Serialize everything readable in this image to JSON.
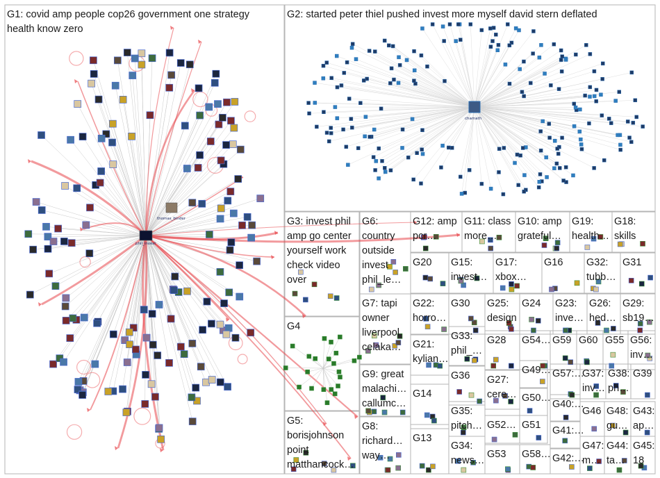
{
  "colors": {
    "background": "#ffffff",
    "panel_border": "#b5b5b5",
    "edge_light": "#c9c9c9",
    "edge_strong": "#e8474c",
    "node_blue": "#2d6fb3",
    "node_green": "#3a8f3a",
    "text": "#1a1a1a"
  },
  "groups": [
    {
      "id": "G1",
      "label": "G1: covid amp people cop26 government one strategy health know zero",
      "lines": [
        "G1: covid amp people cop26 government one strategy",
        "health know zero"
      ]
    },
    {
      "id": "G2",
      "label": "G2: started peter thiel pushed invest more myself david stern deflated",
      "lines": [
        "G2: started peter thiel pushed invest more myself david stern deflated"
      ]
    },
    {
      "id": "G3",
      "label": "G3: invest phil amp go center yourself work check video over",
      "lines": [
        "G3: invest phil",
        "amp go center",
        "yourself work",
        "check video",
        "over"
      ]
    },
    {
      "id": "G4",
      "label": "G4",
      "lines": [
        "G4"
      ]
    },
    {
      "id": "G5",
      "label": "G5: borisjohnson point matthancock…",
      "lines": [
        "G5:",
        "borisjohnson",
        "point",
        "matthancock…"
      ]
    },
    {
      "id": "G6",
      "label": "G6: country outside invest phil_le…",
      "lines": [
        "G6:",
        "country",
        "outside",
        "invest",
        "phil_le…"
      ]
    },
    {
      "id": "G7",
      "label": "G7: tapi owner liverpool celaka…",
      "lines": [
        "G7: tapi",
        "owner",
        "liverpool",
        "celaka…"
      ]
    },
    {
      "id": "G8",
      "label": "G8: richard… way…",
      "lines": [
        "G8:",
        "richard…",
        "way…"
      ]
    },
    {
      "id": "G9",
      "label": "G9: great malachi… callumc…",
      "lines": [
        "G9: great",
        "malachi…",
        "callumc…"
      ]
    },
    {
      "id": "G10",
      "label": "G10: amp grateful…",
      "lines": [
        "G10: amp",
        "grateful…"
      ]
    },
    {
      "id": "G11",
      "label": "G11: class more…",
      "lines": [
        "G11: class",
        "more…"
      ]
    },
    {
      "id": "G12",
      "label": "G12: amp pcr…",
      "lines": [
        "G12: amp",
        "pcr…"
      ]
    },
    {
      "id": "G13",
      "label": "G13",
      "lines": [
        "G13"
      ]
    },
    {
      "id": "G14",
      "label": "G14",
      "lines": [
        "G14"
      ]
    },
    {
      "id": "G15",
      "label": "G15: invest…",
      "lines": [
        "G15:",
        "invest…"
      ]
    },
    {
      "id": "G16",
      "label": "G16",
      "lines": [
        "G16"
      ]
    },
    {
      "id": "G17",
      "label": "G17: xbox…",
      "lines": [
        "G17:",
        "xbox…"
      ]
    },
    {
      "id": "G18",
      "label": "G18: skills",
      "lines": [
        "G18:",
        "skills"
      ]
    },
    {
      "id": "G19",
      "label": "G19: health…",
      "lines": [
        "G19:",
        "health…"
      ]
    },
    {
      "id": "G20",
      "label": "G20",
      "lines": [
        "G20"
      ]
    },
    {
      "id": "G21",
      "label": "G21: kylian…",
      "lines": [
        "G21:",
        "kylian…"
      ]
    },
    {
      "id": "G22",
      "label": "G22: horro…",
      "lines": [
        "G22:",
        "horro…"
      ]
    },
    {
      "id": "G23",
      "label": "G23: inve…",
      "lines": [
        "G23:",
        "inve…"
      ]
    },
    {
      "id": "G24",
      "label": "G24",
      "lines": [
        "G24"
      ]
    },
    {
      "id": "G25",
      "label": "G25: design",
      "lines": [
        "G25:",
        "design"
      ]
    },
    {
      "id": "G26",
      "label": "G26: hed…",
      "lines": [
        "G26:",
        "hed…"
      ]
    },
    {
      "id": "G27",
      "label": "G27: cere…",
      "lines": [
        "G27:",
        "cere…"
      ]
    },
    {
      "id": "G28",
      "label": "G28",
      "lines": [
        "G28"
      ]
    },
    {
      "id": "G29",
      "label": "G29: sb19…",
      "lines": [
        "G29:",
        "sb19…"
      ]
    },
    {
      "id": "G30",
      "label": "G30",
      "lines": [
        "G30"
      ]
    },
    {
      "id": "G31",
      "label": "G31",
      "lines": [
        "G31"
      ]
    },
    {
      "id": "G32",
      "label": "G32: tubb…",
      "lines": [
        "G32:",
        "tubb…"
      ]
    },
    {
      "id": "G33",
      "label": "G33: phil_…",
      "lines": [
        "G33:",
        "phil_…"
      ]
    },
    {
      "id": "G34",
      "label": "G34: news…",
      "lines": [
        "G34:",
        "news…"
      ]
    },
    {
      "id": "G35",
      "label": "G35: pitch…",
      "lines": [
        "G35:",
        "pitch…"
      ]
    },
    {
      "id": "G36",
      "label": "G36",
      "lines": [
        "G36"
      ]
    },
    {
      "id": "G37",
      "label": "G37: inv…",
      "lines": [
        "G37:",
        "inv…"
      ]
    },
    {
      "id": "G38",
      "label": "G38: ph…",
      "lines": [
        "G38:",
        "ph…"
      ]
    },
    {
      "id": "G39",
      "label": "G39",
      "lines": [
        "G39"
      ]
    },
    {
      "id": "G40",
      "label": "G40:…",
      "lines": [
        "G40:…"
      ]
    },
    {
      "id": "G41",
      "label": "G41:…",
      "lines": [
        "G41:…"
      ]
    },
    {
      "id": "G42",
      "label": "G42:…",
      "lines": [
        "G42:…"
      ]
    },
    {
      "id": "G43",
      "label": "G43: ap…",
      "lines": [
        "G43:",
        "ap…"
      ]
    },
    {
      "id": "G44",
      "label": "G44: ta…",
      "lines": [
        "G44:",
        "ta…"
      ]
    },
    {
      "id": "G45",
      "label": "G45: 18",
      "lines": [
        "G45:",
        "18"
      ]
    },
    {
      "id": "G46",
      "label": "G46",
      "lines": [
        "G46"
      ]
    },
    {
      "id": "G47",
      "label": "G47: m…",
      "lines": [
        "G47:",
        "m…"
      ]
    },
    {
      "id": "G48",
      "label": "G48: gu…",
      "lines": [
        "G48:",
        "gu…"
      ]
    },
    {
      "id": "G49",
      "label": "G49…",
      "lines": [
        "G49…"
      ]
    },
    {
      "id": "G50",
      "label": "G50…",
      "lines": [
        "G50…"
      ]
    },
    {
      "id": "G51",
      "label": "G51",
      "lines": [
        "G51"
      ]
    },
    {
      "id": "G52",
      "label": "G52…",
      "lines": [
        "G52…"
      ]
    },
    {
      "id": "G53",
      "label": "G53",
      "lines": [
        "G53"
      ]
    },
    {
      "id": "G54",
      "label": "G54…",
      "lines": [
        "G54…"
      ]
    },
    {
      "id": "G55",
      "label": "G55",
      "lines": [
        "G55"
      ]
    },
    {
      "id": "G56",
      "label": "G56: inv…",
      "lines": [
        "G56:",
        "inv…"
      ]
    },
    {
      "id": "G57",
      "label": "G57:…",
      "lines": [
        "G57:…"
      ]
    },
    {
      "id": "G58",
      "label": "G58…",
      "lines": [
        "G58…"
      ]
    },
    {
      "id": "G59",
      "label": "G59",
      "lines": [
        "G59"
      ]
    },
    {
      "id": "G60",
      "label": "G60",
      "lines": [
        "G60"
      ]
    }
  ],
  "node_labels": {
    "g1_hub": "phil_invest",
    "g1_secondary": "thomas_binder",
    "g2_hub": "chamath"
  }
}
